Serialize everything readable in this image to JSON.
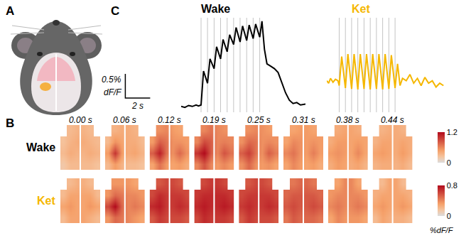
{
  "panel_A": {
    "letter": "A"
  },
  "panel_B": {
    "letter": "B",
    "frame_times": [
      "0.00 s",
      "0.06 s",
      "0.12 s",
      "0.19 s",
      "0.25 s",
      "0.31 s",
      "0.38 s",
      "0.44 s"
    ],
    "colorbar_title": "%dF/F",
    "rows": [
      {
        "label": "Wake",
        "color": "#000000",
        "colorbar": {
          "range": [
            0,
            1.2
          ],
          "ticks": [
            0,
            1.2
          ]
        },
        "cells": [
          [
            [
              null,
              0.3,
              0.35,
              0.35,
              0.3,
              null
            ],
            [
              0.25,
              0.35,
              0.4,
              0.4,
              0.35,
              0.3
            ],
            [
              0.3,
              0.4,
              0.35,
              0.35,
              0.4,
              0.35
            ],
            [
              0.2,
              0.3,
              0.3,
              0.3,
              0.3,
              0.25
            ]
          ],
          [
            [
              null,
              0.35,
              0.4,
              0.4,
              0.35,
              null
            ],
            [
              0.3,
              0.55,
              0.45,
              0.4,
              0.4,
              0.3
            ],
            [
              0.5,
              1.0,
              0.5,
              0.4,
              0.45,
              0.35
            ],
            [
              0.3,
              0.5,
              0.35,
              0.3,
              0.3,
              0.25
            ]
          ],
          [
            [
              null,
              0.55,
              0.6,
              0.5,
              0.45,
              null
            ],
            [
              0.5,
              0.8,
              0.7,
              0.55,
              0.55,
              0.5
            ],
            [
              0.8,
              1.1,
              0.7,
              0.55,
              0.75,
              0.55
            ],
            [
              0.45,
              0.7,
              0.5,
              0.45,
              0.5,
              0.4
            ]
          ],
          [
            [
              null,
              0.6,
              0.7,
              0.6,
              0.55,
              null
            ],
            [
              0.6,
              0.9,
              0.8,
              0.6,
              0.65,
              0.6
            ],
            [
              1.0,
              1.2,
              0.8,
              0.6,
              0.85,
              0.7
            ],
            [
              0.6,
              0.85,
              0.6,
              0.5,
              0.6,
              0.5
            ]
          ],
          [
            [
              null,
              0.55,
              0.6,
              0.55,
              0.5,
              null
            ],
            [
              0.55,
              0.75,
              0.7,
              0.55,
              0.6,
              0.55
            ],
            [
              0.8,
              0.95,
              0.7,
              0.55,
              0.8,
              0.65
            ],
            [
              0.55,
              0.75,
              0.55,
              0.5,
              0.55,
              0.45
            ]
          ],
          [
            [
              null,
              0.45,
              0.5,
              0.5,
              0.45,
              null
            ],
            [
              0.45,
              0.6,
              0.55,
              0.5,
              0.55,
              0.5
            ],
            [
              0.6,
              0.7,
              0.55,
              0.5,
              0.65,
              0.5
            ],
            [
              0.45,
              0.6,
              0.5,
              0.45,
              0.5,
              0.4
            ]
          ],
          [
            [
              null,
              0.4,
              0.45,
              0.45,
              0.4,
              null
            ],
            [
              0.4,
              0.5,
              0.5,
              0.45,
              0.5,
              0.45
            ],
            [
              0.5,
              0.55,
              0.5,
              0.45,
              0.6,
              0.45
            ],
            [
              0.4,
              0.5,
              0.45,
              0.4,
              0.45,
              0.35
            ]
          ],
          [
            [
              null,
              0.35,
              0.4,
              0.4,
              0.35,
              null
            ],
            [
              0.35,
              0.45,
              0.45,
              0.4,
              0.45,
              0.4
            ],
            [
              0.45,
              0.5,
              0.45,
              0.4,
              0.5,
              0.4
            ],
            [
              0.35,
              0.4,
              0.4,
              0.35,
              0.4,
              0.3
            ]
          ]
        ]
      },
      {
        "label": "Ket",
        "color": "#f5b700",
        "colorbar": {
          "range": [
            0,
            0.8
          ],
          "ticks": [
            0,
            0.8
          ]
        },
        "cells": [
          [
            [
              null,
              0.2,
              0.25,
              0.25,
              0.2,
              null
            ],
            [
              0.2,
              0.3,
              0.3,
              0.3,
              0.3,
              0.2
            ],
            [
              0.3,
              0.35,
              0.3,
              0.3,
              0.35,
              0.3
            ],
            [
              0.2,
              0.3,
              0.3,
              0.3,
              0.25,
              0.2
            ]
          ],
          [
            [
              null,
              0.35,
              0.35,
              0.35,
              0.3,
              null
            ],
            [
              0.35,
              0.5,
              0.45,
              0.4,
              0.4,
              0.35
            ],
            [
              0.6,
              0.8,
              0.5,
              0.4,
              0.45,
              0.4
            ],
            [
              0.35,
              0.5,
              0.45,
              0.4,
              0.35,
              0.3
            ]
          ],
          [
            [
              null,
              0.55,
              0.6,
              0.6,
              0.55,
              null
            ],
            [
              0.6,
              0.7,
              0.65,
              0.65,
              0.65,
              0.6
            ],
            [
              0.7,
              0.75,
              0.65,
              0.65,
              0.7,
              0.65
            ],
            [
              0.55,
              0.65,
              0.6,
              0.6,
              0.6,
              0.55
            ]
          ],
          [
            [
              null,
              0.6,
              0.65,
              0.65,
              0.6,
              null
            ],
            [
              0.65,
              0.7,
              0.7,
              0.7,
              0.7,
              0.65
            ],
            [
              0.7,
              0.75,
              0.7,
              0.7,
              0.75,
              0.7
            ],
            [
              0.6,
              0.7,
              0.65,
              0.65,
              0.65,
              0.6
            ]
          ],
          [
            [
              null,
              0.55,
              0.6,
              0.6,
              0.55,
              null
            ],
            [
              0.6,
              0.65,
              0.65,
              0.65,
              0.65,
              0.6
            ],
            [
              0.65,
              0.7,
              0.65,
              0.65,
              0.7,
              0.65
            ],
            [
              0.55,
              0.65,
              0.6,
              0.6,
              0.6,
              0.55
            ]
          ],
          [
            [
              null,
              0.45,
              0.5,
              0.5,
              0.45,
              null
            ],
            [
              0.5,
              0.55,
              0.55,
              0.55,
              0.55,
              0.5
            ],
            [
              0.55,
              0.6,
              0.55,
              0.55,
              0.6,
              0.55
            ],
            [
              0.45,
              0.55,
              0.5,
              0.5,
              0.5,
              0.45
            ]
          ],
          [
            [
              null,
              0.3,
              0.4,
              0.4,
              0.3,
              null
            ],
            [
              0.35,
              0.4,
              0.4,
              0.4,
              0.4,
              0.35
            ],
            [
              0.4,
              0.45,
              0.4,
              0.4,
              0.45,
              0.4
            ],
            [
              0.3,
              0.4,
              0.35,
              0.35,
              0.35,
              0.3
            ]
          ],
          [
            [
              null,
              0.2,
              0.3,
              0.3,
              0.2,
              null
            ],
            [
              0.25,
              0.3,
              0.3,
              0.3,
              0.3,
              0.25
            ],
            [
              0.3,
              0.35,
              0.3,
              0.3,
              0.35,
              0.3
            ],
            [
              0.2,
              0.3,
              0.25,
              0.25,
              0.25,
              0.2
            ]
          ]
        ]
      }
    ]
  },
  "panel_C": {
    "letter": "C",
    "scale_bar": {
      "x": 2,
      "x_label": "2 s",
      "y": 0.5,
      "y_label": "0.5%",
      "y_unit": "dF/F"
    }
  },
  "chart_data": [
    {
      "type": "line",
      "title": "Wake",
      "color": "#000000",
      "tick_labels": false,
      "xlim": [
        0,
        10
      ],
      "ylim": [
        -0.1,
        1.85
      ],
      "stimuli": [
        1.6,
        2.12,
        2.65,
        3.17,
        3.7,
        4.22,
        4.74,
        5.27,
        5.79,
        6.32
      ],
      "x": [
        0,
        0.3,
        0.6,
        0.9,
        1.2,
        1.4,
        1.6,
        1.8,
        2.12,
        2.32,
        2.65,
        2.85,
        3.17,
        3.37,
        3.7,
        3.9,
        4.22,
        4.42,
        4.74,
        4.94,
        5.27,
        5.47,
        5.79,
        5.99,
        6.32,
        6.5,
        6.7,
        6.9,
        7.2,
        7.5,
        7.8,
        8.1,
        8.4,
        8.7,
        9.0,
        9.3,
        9.6,
        10
      ],
      "values": [
        0.02,
        0.0,
        0.04,
        0.02,
        0.05,
        0.03,
        0.05,
        0.75,
        0.5,
        1.0,
        0.8,
        1.25,
        1.0,
        1.4,
        1.15,
        1.5,
        1.3,
        1.65,
        1.35,
        1.68,
        1.38,
        1.7,
        1.42,
        1.72,
        1.45,
        1.78,
        1.2,
        0.9,
        0.85,
        0.8,
        0.72,
        0.5,
        0.3,
        0.15,
        0.08,
        0.1,
        0.05,
        0.07
      ]
    },
    {
      "type": "line",
      "title": "Ket",
      "color": "#f5b700",
      "tick_labels": false,
      "xlim": [
        0,
        9.5
      ],
      "ylim": [
        -0.1,
        1.85
      ],
      "stimuli": [
        1.0,
        1.5,
        2.0,
        2.5,
        3.0,
        3.5,
        4.0,
        4.5,
        5.0,
        5.5
      ],
      "x": [
        0,
        0.15,
        0.3,
        0.5,
        0.7,
        0.9,
        1.0,
        1.2,
        1.5,
        1.7,
        2.0,
        2.2,
        2.5,
        2.7,
        3.0,
        3.2,
        3.5,
        3.7,
        4.0,
        4.2,
        4.5,
        4.7,
        5.0,
        5.2,
        5.5,
        5.7,
        5.9,
        6.1,
        6.4,
        6.7,
        7.0,
        7.3,
        7.6,
        7.9,
        8.2,
        8.5,
        8.8,
        9.1,
        9.4
      ],
      "values": [
        0.55,
        0.5,
        0.6,
        0.52,
        0.58,
        0.55,
        0.45,
        1.05,
        0.4,
        1.1,
        0.38,
        1.1,
        0.37,
        1.1,
        0.38,
        1.1,
        0.37,
        1.1,
        0.38,
        1.1,
        0.37,
        1.1,
        0.38,
        1.08,
        0.4,
        0.9,
        0.45,
        0.6,
        0.55,
        0.68,
        0.5,
        0.6,
        0.45,
        0.62,
        0.5,
        0.55,
        0.42,
        0.5,
        0.45
      ]
    }
  ]
}
